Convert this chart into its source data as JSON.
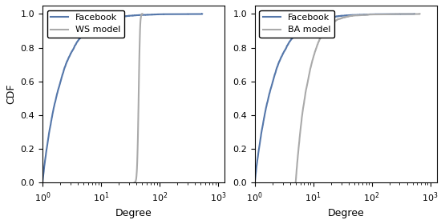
{
  "facebook_color": "#5577AA",
  "ws_color": "#AAAAAA",
  "ba_color": "#AAAAAA",
  "facebook_linewidth": 1.5,
  "model_linewidth": 1.5,
  "xlabel": "Degree",
  "ylabel": "CDF",
  "ylim": [
    0,
    1.05
  ],
  "xlim_left": [
    1,
    1300
  ],
  "xlim_right": [
    1,
    1300
  ],
  "yticks": [
    0.0,
    0.2,
    0.4,
    0.6,
    0.8,
    1.0
  ],
  "legend_left": [
    "Facebook",
    "WS model"
  ],
  "legend_right": [
    "Facebook",
    "BA model"
  ],
  "figsize": [
    5.55,
    2.8
  ],
  "dpi": 100
}
